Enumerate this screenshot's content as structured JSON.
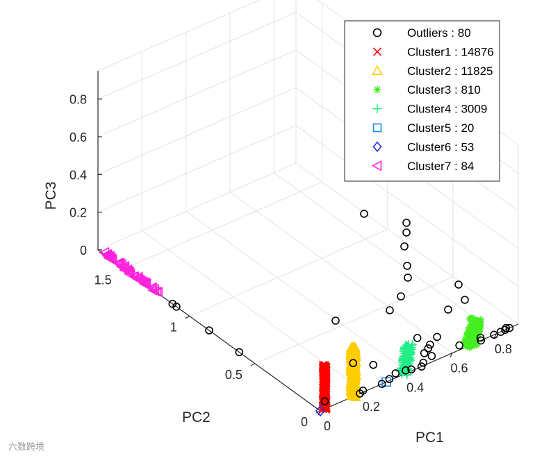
{
  "chart_data": {
    "type": "scatter",
    "title": "",
    "xlabel": "PC1",
    "ylabel": "PC2",
    "zlabel": "PC3",
    "xlim": [
      0,
      0.9
    ],
    "ylim": [
      0,
      1.7
    ],
    "zlim": [
      0,
      0.95
    ],
    "x_ticks": [
      "0",
      "0.2",
      "0.4",
      "0.6",
      "0.8"
    ],
    "y_ticks": [
      "0",
      "0.5",
      "1",
      "1.5"
    ],
    "z_ticks": [
      "0",
      "0.2",
      "0.4",
      "0.6",
      "0.8"
    ],
    "grid": true,
    "legend_position": "top-right",
    "series": [
      {
        "name": "Outliers",
        "count": 80,
        "label": "Outliers : 80",
        "marker": "circle",
        "color": "#000000"
      },
      {
        "name": "Cluster1",
        "count": 14876,
        "label": "Cluster1 : 14876",
        "marker": "x",
        "color": "#ff0000"
      },
      {
        "name": "Cluster2",
        "count": 11825,
        "label": "Cluster2 : 11825",
        "marker": "triangle-up",
        "color": "#ffcc00"
      },
      {
        "name": "Cluster3",
        "count": 810,
        "label": "Cluster3 : 810",
        "marker": "asterisk",
        "color": "#44ee22"
      },
      {
        "name": "Cluster4",
        "count": 3009,
        "label": "Cluster4 : 3009",
        "marker": "plus",
        "color": "#22ee88"
      },
      {
        "name": "Cluster5",
        "count": 20,
        "label": "Cluster5 : 20",
        "marker": "square",
        "color": "#1188ff"
      },
      {
        "name": "Cluster6",
        "count": 53,
        "label": "Cluster6 : 53",
        "marker": "diamond",
        "color": "#2a2add"
      },
      {
        "name": "Cluster7",
        "count": 84,
        "label": "Cluster7 : 84",
        "marker": "triangle-left",
        "color": "#ff22dd"
      }
    ],
    "points": {
      "Cluster1": {
        "x": [
          0.02,
          0.02
        ],
        "y": [
          0.0,
          0.0
        ],
        "z": [
          0.0,
          0.23
        ]
      },
      "Cluster2": {
        "x": [
          0.15,
          0.15
        ],
        "y": [
          0.0,
          0.0
        ],
        "z": [
          0.0,
          0.26
        ]
      },
      "Cluster3": {
        "x": [
          0.68,
          0.72
        ],
        "y": [
          0.0,
          0.02
        ],
        "z": [
          0.0,
          0.1
        ]
      },
      "Cluster4": {
        "x": [
          0.38,
          0.42
        ],
        "y": [
          0.0,
          0.03
        ],
        "z": [
          0.0,
          0.12
        ]
      },
      "Cluster5": {
        "x": [
          0.3
        ],
        "y": [
          0.0
        ],
        "z": [
          0.0
        ]
      },
      "Cluster6": {
        "x": [
          0.0
        ],
        "y": [
          0.0
        ],
        "z": [
          0.0
        ]
      },
      "Cluster7": {
        "x": [
          0.0,
          0.0
        ],
        "y": [
          1.25,
          1.65
        ],
        "z": [
          0.0,
          0.01
        ]
      },
      "Outliers": {
        "x": [
          0.0,
          0.0,
          0.0,
          0.0,
          0.18,
          0.28,
          0.05,
          0.32,
          0.28,
          0.33,
          0.36,
          0.4,
          0.42,
          0.46,
          0.48,
          0.53,
          0.52,
          0.55,
          0.56,
          0.57,
          0.62,
          0.79,
          0.82,
          0.84,
          0.86,
          0.85,
          0.74,
          0.73,
          0.65,
          0.2
        ],
        "y": [
          0.85,
          1.13,
          1.1,
          0.62,
          0.0,
          0.0,
          0.05,
          0.01,
          0.22,
          0.15,
          0.03,
          0.02,
          0.01,
          0.0,
          0.02,
          0.04,
          0.08,
          0.1,
          0.2,
          0.12,
          0.15,
          0.0,
          0.0,
          0.0,
          0.0,
          0.01,
          0.02,
          0.0,
          0.03,
          0.01
        ],
        "z": [
          0.0,
          0.0,
          0.0,
          0.0,
          0.0,
          0.0,
          0.0,
          0.0,
          0.0,
          0.0,
          0.0,
          0.0,
          0.0,
          0.0,
          0.0,
          0.0,
          0.0,
          0.0,
          0.0,
          0.0,
          0.0,
          0.0,
          0.0,
          0.0,
          0.0,
          0.0,
          0.0,
          0.0,
          0.0,
          0.0
        ]
      }
    }
  },
  "watermark": "六数跨境"
}
